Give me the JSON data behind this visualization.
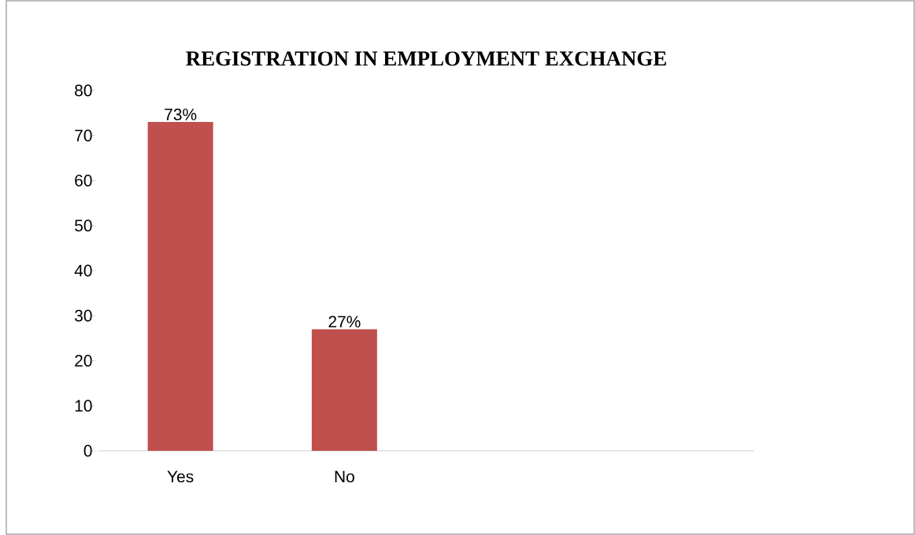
{
  "chart_data": {
    "type": "bar",
    "title": "REGISTRATION IN EMPLOYMENT EXCHANGE",
    "categories": [
      "Yes",
      "No",
      null,
      null
    ],
    "values": [
      73,
      27,
      null,
      null
    ],
    "value_labels": [
      "73%",
      "27%",
      null,
      null
    ],
    "color": "#c0504d",
    "ylim": [
      0,
      80
    ],
    "yticks": [
      0,
      10,
      20,
      30,
      40,
      50,
      60,
      70,
      80
    ]
  }
}
